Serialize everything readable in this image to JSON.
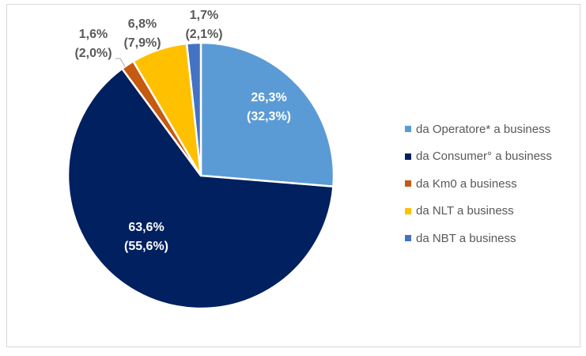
{
  "chart_data": {
    "type": "pie",
    "title": "",
    "start_angle_deg": 0,
    "direction": "clockwise",
    "legend_position": "right",
    "slices": [
      {
        "name": "da Operatore* a business",
        "value": 26.3,
        "label": "26,3%",
        "sublabel": "(32,3%)",
        "color": "#5B9BD5",
        "label_color": "#FFFFFF"
      },
      {
        "name": "da Consumer° a business",
        "value": 63.6,
        "label": "63,6%",
        "sublabel": "(55,6%)",
        "color": "#002060",
        "label_color": "#FFFFFF"
      },
      {
        "name": "da Km0 a business",
        "value": 1.6,
        "label": "1,6%",
        "sublabel": "(2,0%)",
        "color": "#C55A11",
        "label_color": "#595959"
      },
      {
        "name": "da NLT a business",
        "value": 6.8,
        "label": "6,8%",
        "sublabel": "(7,9%)",
        "color": "#FFC000",
        "label_color": "#595959"
      },
      {
        "name": "da NBT a business",
        "value": 1.7,
        "label": "1,7%",
        "sublabel": "(2,1%)",
        "color": "#4472C4",
        "label_color": "#595959"
      }
    ]
  }
}
